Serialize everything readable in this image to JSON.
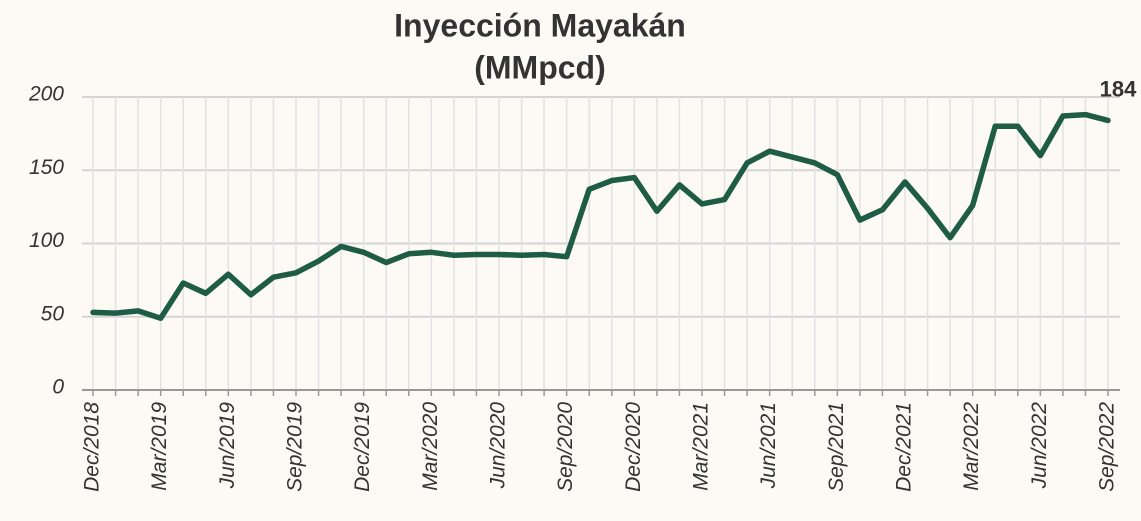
{
  "chart_data": {
    "type": "line",
    "title": "Inyección Mayakán",
    "subtitle": "(MMpcd)",
    "categories": [
      "Dec/2018",
      null,
      null,
      "Mar/2019",
      null,
      null,
      "Jun/2019",
      null,
      null,
      "Sep/2019",
      null,
      null,
      "Dec/2019",
      null,
      null,
      "Mar/2020",
      null,
      null,
      "Jun/2020",
      null,
      null,
      "Sep/2020",
      null,
      null,
      "Dec/2020",
      null,
      null,
      "Mar/2021",
      null,
      null,
      "Jun/2021",
      null,
      null,
      "Sep/2021",
      null,
      null,
      "Dec/2021",
      null,
      null,
      "Mar/2022",
      null,
      null,
      "Jun/2022",
      null,
      null,
      "Sep/2022"
    ],
    "series": [
      {
        "name": "Inyección Mayakán",
        "color": "#1e5c46",
        "values": [
          53,
          52.5,
          54,
          49,
          73,
          66,
          79,
          65,
          77,
          80,
          88,
          98,
          94,
          87,
          93,
          94,
          92,
          92.5,
          92.5,
          92,
          92.5,
          91,
          137,
          143,
          145,
          122,
          140,
          127,
          130,
          155,
          163,
          159,
          155,
          147,
          116,
          123,
          142,
          124,
          104,
          126,
          180,
          180,
          160,
          187,
          188,
          184
        ]
      }
    ],
    "ylim": [
      0,
      200
    ],
    "yticks": [
      0,
      50,
      100,
      150,
      200
    ],
    "grid": true
  }
}
